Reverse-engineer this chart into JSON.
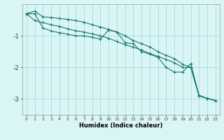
{
  "xlabel": "Humidex (Indice chaleur)",
  "bg_color": "#d9f5f5",
  "grid_color": "#b0dede",
  "line_color": "#1a7a6e",
  "xlim": [
    -0.5,
    23.5
  ],
  "ylim": [
    -3.5,
    -0.0
  ],
  "xticks": [
    0,
    1,
    2,
    3,
    4,
    5,
    6,
    7,
    8,
    9,
    10,
    11,
    12,
    13,
    14,
    15,
    16,
    17,
    18,
    19,
    20,
    21,
    22,
    23
  ],
  "yticks": [
    -3,
    -2,
    -1
  ],
  "line1_x": [
    0,
    1,
    2,
    3,
    4,
    5,
    6,
    7,
    8,
    9,
    10,
    11,
    12,
    13,
    14,
    15,
    16,
    17,
    18,
    19,
    20,
    21,
    22,
    23
  ],
  "line1_y": [
    -0.3,
    -0.22,
    -0.4,
    -0.42,
    -0.45,
    -0.48,
    -0.52,
    -0.57,
    -0.65,
    -0.72,
    -0.8,
    -0.88,
    -1.0,
    -1.15,
    -1.25,
    -1.35,
    -1.5,
    -1.62,
    -1.72,
    -1.9,
    -2.0,
    -2.9,
    -2.98,
    -3.05
  ],
  "line2_x": [
    0,
    1,
    2,
    3,
    4,
    5,
    6,
    7,
    8,
    9,
    10,
    11,
    12,
    13,
    14,
    15,
    16,
    17,
    18,
    19,
    20,
    21,
    22,
    23
  ],
  "line2_y": [
    -0.3,
    -0.52,
    -0.58,
    -0.65,
    -0.7,
    -0.78,
    -0.84,
    -0.88,
    -0.94,
    -1.0,
    -1.08,
    -1.18,
    -1.28,
    -1.36,
    -1.45,
    -1.56,
    -1.65,
    -1.75,
    -1.85,
    -2.0,
    -2.0,
    -2.9,
    -2.98,
    -3.05
  ],
  "line3_x": [
    0,
    1,
    2,
    3,
    4,
    5,
    6,
    7,
    8,
    9,
    10,
    11,
    12,
    13,
    14,
    15,
    16,
    17,
    18,
    19,
    20,
    21,
    22,
    23
  ],
  "line3_y": [
    -0.3,
    -0.3,
    -0.75,
    -0.85,
    -0.9,
    -0.95,
    -1.0,
    -1.0,
    -1.05,
    -1.1,
    -0.82,
    -0.88,
    -1.22,
    -1.25,
    -1.5,
    -1.58,
    -1.68,
    -2.0,
    -2.15,
    -2.15,
    -1.88,
    -2.88,
    -2.98,
    -3.05
  ],
  "xtick_fontsize": 4.5,
  "ytick_fontsize": 6.5,
  "xlabel_fontsize": 6.0
}
